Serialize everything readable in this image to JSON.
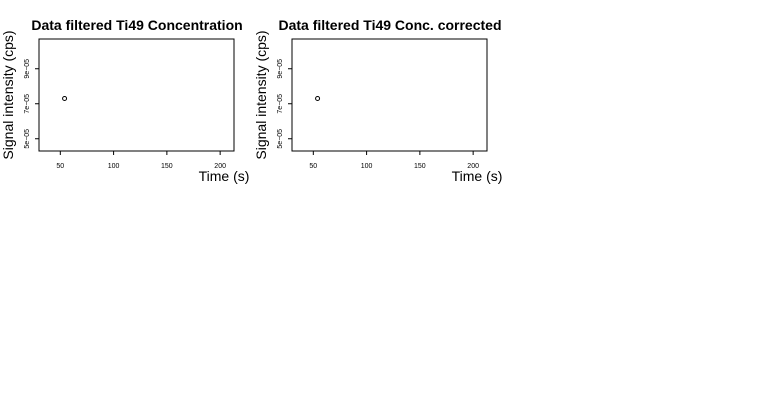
{
  "chart_data": [
    {
      "type": "scatter",
      "title": "Data filtered Ti49 Concentration",
      "xlabel": "Time (s)",
      "ylabel": "Signal intensity (cps)",
      "xlim": [
        30,
        213
      ],
      "ylim": [
        4.3e-05,
        0.000107
      ],
      "x_ticks": [
        50,
        100,
        150,
        200
      ],
      "x_tick_labels": [
        "50",
        "100",
        "150",
        "200"
      ],
      "y_ticks": [
        5e-05,
        7e-05,
        9e-05
      ],
      "y_tick_labels": [
        "5e−05",
        "7e−05",
        "9e−05"
      ],
      "points": [
        {
          "x": 54,
          "y": 7.3e-05
        }
      ],
      "grid": false,
      "legend": "none"
    },
    {
      "type": "scatter",
      "title": "Data filtered Ti49 Conc. corrected",
      "xlabel": "Time (s)",
      "ylabel": "Signal intensity (cps)",
      "xlim": [
        30,
        213
      ],
      "ylim": [
        4.3e-05,
        0.000107
      ],
      "x_ticks": [
        50,
        100,
        150,
        200
      ],
      "x_tick_labels": [
        "50",
        "100",
        "150",
        "200"
      ],
      "y_ticks": [
        5e-05,
        7e-05,
        9e-05
      ],
      "y_tick_labels": [
        "5e−05",
        "7e−05",
        "9e−05"
      ],
      "points": [
        {
          "x": 54,
          "y": 7.3e-05
        }
      ],
      "grid": false,
      "legend": "none"
    }
  ]
}
